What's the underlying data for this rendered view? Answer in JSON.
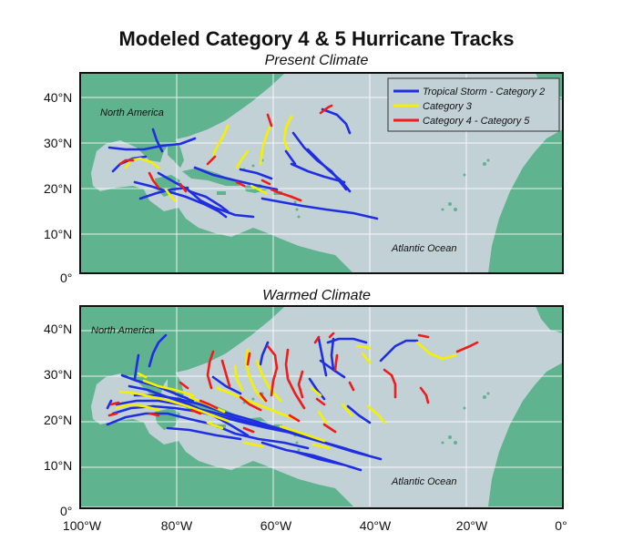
{
  "title": "Modeled Category 4 & 5 Hurricane Tracks",
  "panels": [
    {
      "subtitle": "Present Climate",
      "label_land": "North America",
      "label_ocean": "Atlantic Ocean"
    },
    {
      "subtitle": "Warmed Climate",
      "label_land": "North America",
      "label_ocean": "Atlantic Ocean"
    }
  ],
  "lat_ticks": [
    "40°N",
    "30°N",
    "20°N",
    "10°N",
    "0°"
  ],
  "lon_ticks": [
    "100°W",
    "80°W",
    "60°W",
    "40°W",
    "20°W",
    "0°"
  ],
  "legend": [
    {
      "label": "Tropical Storm - Category 2",
      "color": "#1f2ee0"
    },
    {
      "label": "Category 3",
      "color": "#f5f000"
    },
    {
      "label": "Category 4 - Category 5",
      "color": "#ee1c1c"
    }
  ],
  "colors": {
    "ocean": "#c2d1d6",
    "land": "#5fb38e",
    "grid": "#ffffff"
  }
}
